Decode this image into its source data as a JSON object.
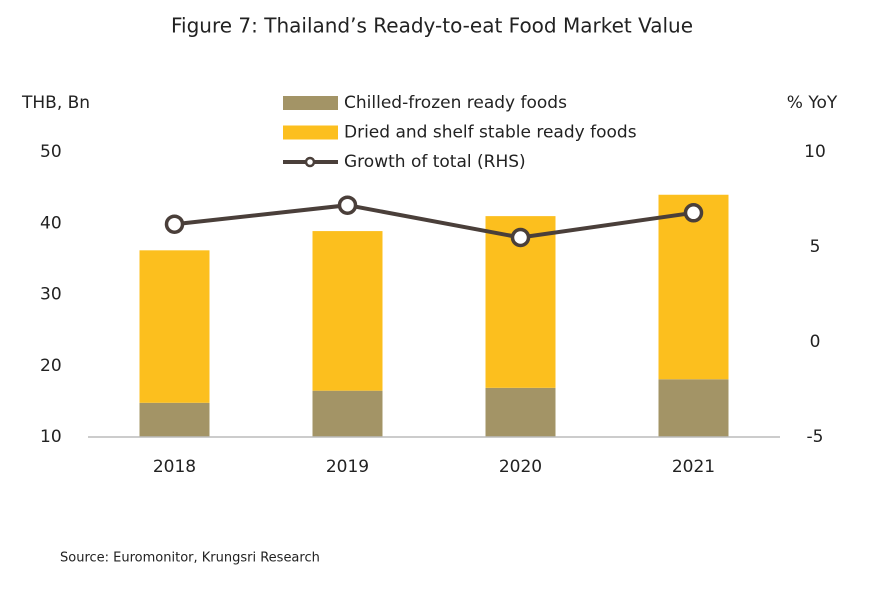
{
  "chart_data": {
    "type": "bar",
    "title": "Figure 7: Thailand’s Ready-to-eat Food Market Value",
    "y_label": "THB, Bn",
    "y2_label": "% YoY",
    "source": "Source: Euromonitor, Krungsri Research",
    "categories": [
      "2018",
      "2019",
      "2020",
      "2021"
    ],
    "stacked": true,
    "series": [
      {
        "name": "Chilled-frozen ready foods",
        "color": "#a39466",
        "values": [
          14.8,
          16.5,
          16.9,
          18.1
        ]
      },
      {
        "name": "Dried and shelf stable ready foods",
        "color": "#fcbf1e",
        "values": [
          21.4,
          22.4,
          24.1,
          25.9
        ]
      },
      {
        "name": "Growth of total (RHS)",
        "color": "#4a3f3a",
        "type": "line",
        "axis": "y2",
        "values": [
          6.2,
          7.2,
          5.5,
          6.8
        ]
      }
    ],
    "ylim": [
      10,
      50
    ],
    "yticks": [
      10,
      20,
      30,
      40,
      50
    ],
    "y2lim": [
      -5,
      10
    ],
    "y2ticks": [
      -5,
      0,
      5,
      10
    ],
    "grid": false
  }
}
